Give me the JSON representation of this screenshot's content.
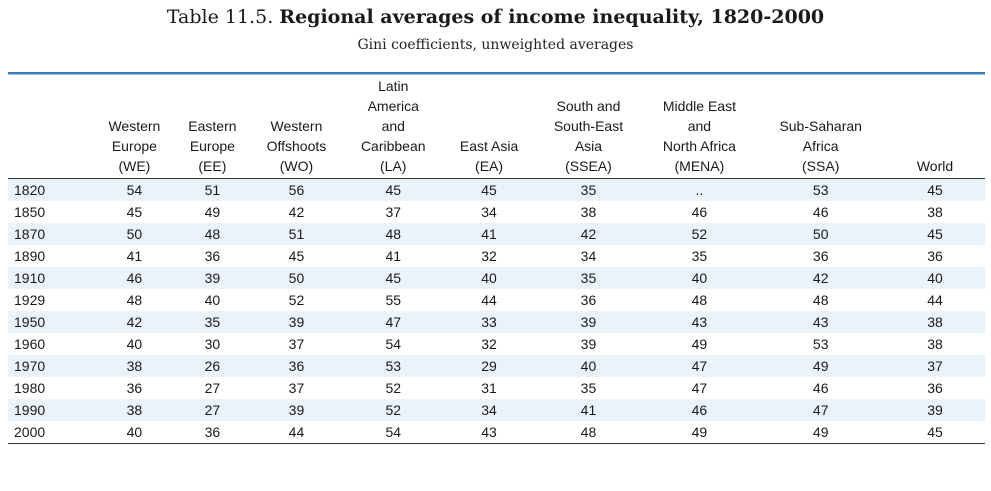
{
  "title": {
    "prefix": "Table 11.5.",
    "main": "Regional averages of income inequality, 1820-2000"
  },
  "subtitle": "Gini coefficients, unweighted averages",
  "columns": [
    {
      "lines": [
        "Western",
        "Europe",
        "(WE)"
      ]
    },
    {
      "lines": [
        "Eastern",
        "Europe",
        "(EE)"
      ]
    },
    {
      "lines": [
        "Western",
        "Offshoots",
        "(WO)"
      ]
    },
    {
      "lines": [
        "Latin",
        "America",
        "and",
        "Caribbean",
        "(LA)"
      ]
    },
    {
      "lines": [
        "East Asia",
        "(EA)"
      ]
    },
    {
      "lines": [
        "South and",
        "South-East",
        "Asia",
        "(SSEA)"
      ]
    },
    {
      "lines": [
        "Middle East",
        "and",
        "North Africa",
        "(MENA)"
      ]
    },
    {
      "lines": [
        "Sub-Saharan",
        "Africa",
        "(SSA)"
      ]
    },
    {
      "lines": [
        "World"
      ]
    }
  ],
  "rows": [
    {
      "year": "1820",
      "values": [
        "54",
        "51",
        "56",
        "45",
        "45",
        "35",
        "..",
        "53",
        "45"
      ]
    },
    {
      "year": "1850",
      "values": [
        "45",
        "49",
        "42",
        "37",
        "34",
        "38",
        "46",
        "46",
        "38"
      ]
    },
    {
      "year": "1870",
      "values": [
        "50",
        "48",
        "51",
        "48",
        "41",
        "42",
        "52",
        "50",
        "45"
      ]
    },
    {
      "year": "1890",
      "values": [
        "41",
        "36",
        "45",
        "41",
        "32",
        "34",
        "35",
        "36",
        "36"
      ]
    },
    {
      "year": "1910",
      "values": [
        "46",
        "39",
        "50",
        "45",
        "40",
        "35",
        "40",
        "42",
        "40"
      ]
    },
    {
      "year": "1929",
      "values": [
        "48",
        "40",
        "52",
        "55",
        "44",
        "36",
        "48",
        "48",
        "44"
      ]
    },
    {
      "year": "1950",
      "values": [
        "42",
        "35",
        "39",
        "47",
        "33",
        "39",
        "43",
        "43",
        "38"
      ]
    },
    {
      "year": "1960",
      "values": [
        "40",
        "30",
        "37",
        "54",
        "32",
        "39",
        "49",
        "53",
        "38"
      ]
    },
    {
      "year": "1970",
      "values": [
        "38",
        "26",
        "36",
        "53",
        "29",
        "40",
        "47",
        "49",
        "37"
      ]
    },
    {
      "year": "1980",
      "values": [
        "36",
        "27",
        "37",
        "52",
        "31",
        "35",
        "47",
        "46",
        "36"
      ]
    },
    {
      "year": "1990",
      "values": [
        "38",
        "27",
        "39",
        "52",
        "34",
        "41",
        "46",
        "47",
        "39"
      ]
    },
    {
      "year": "2000",
      "values": [
        "40",
        "36",
        "44",
        "54",
        "43",
        "48",
        "49",
        "49",
        "45"
      ]
    }
  ],
  "colors": {
    "header_rule": "#3b7cb8",
    "stripe": "#ebf3fa"
  }
}
